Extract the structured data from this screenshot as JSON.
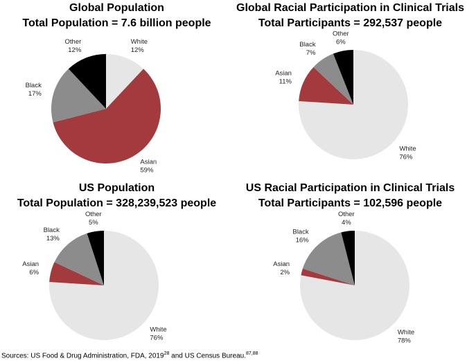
{
  "chart_data": [
    {
      "type": "pie",
      "title": "Global Population",
      "subtitle": "Total Population = 7.6 billion people",
      "slices": [
        {
          "label": "White",
          "value": 12,
          "value_label": "12%",
          "color": "#e6e6e6"
        },
        {
          "label": "Asian",
          "value": 59,
          "value_label": "59%",
          "color": "#a33a3d"
        },
        {
          "label": "Black",
          "value": 17,
          "value_label": "17%",
          "color": "#8c8c8c"
        },
        {
          "label": "Other",
          "value": 12,
          "value_label": "12%",
          "color": "#000000"
        }
      ]
    },
    {
      "type": "pie",
      "title": "Global Racial Participation in Clinical Trials",
      "subtitle": "Total Participants = 292,537 people",
      "slices": [
        {
          "label": "White",
          "value": 76,
          "value_label": "76%",
          "color": "#e6e6e6"
        },
        {
          "label": "Asian",
          "value": 11,
          "value_label": "11%",
          "color": "#a33a3d"
        },
        {
          "label": "Black",
          "value": 7,
          "value_label": "7%",
          "color": "#8c8c8c"
        },
        {
          "label": "Other",
          "value": 6,
          "value_label": "6%",
          "color": "#000000"
        }
      ]
    },
    {
      "type": "pie",
      "title": "US Population",
      "subtitle": "Total Population =  328,239,523 people",
      "slices": [
        {
          "label": "White",
          "value": 76,
          "value_label": "76%",
          "color": "#e6e6e6"
        },
        {
          "label": "Asian",
          "value": 6,
          "value_label": "6%",
          "color": "#a33a3d"
        },
        {
          "label": "Black",
          "value": 13,
          "value_label": "13%",
          "color": "#8c8c8c"
        },
        {
          "label": "Other",
          "value": 5,
          "value_label": "5%",
          "color": "#000000"
        }
      ]
    },
    {
      "type": "pie",
      "title": "US Racial Participation in Clinical Trials",
      "subtitle": "Total Participants = 102,596 people",
      "slices": [
        {
          "label": "White",
          "value": 78,
          "value_label": "78%",
          "color": "#e6e6e6"
        },
        {
          "label": "Asian",
          "value": 2,
          "value_label": "2%",
          "color": "#a33a3d"
        },
        {
          "label": "Black",
          "value": 16,
          "value_label": "16%",
          "color": "#8c8c8c"
        },
        {
          "label": "Other",
          "value": 4,
          "value_label": "4%",
          "color": "#000000"
        }
      ]
    }
  ],
  "source": {
    "prefix": "Sources: US Food & Drug Administration, FDA, 2019",
    "ref1": "28",
    "middle": " and US Census Bureau.",
    "ref2": "87,88"
  }
}
